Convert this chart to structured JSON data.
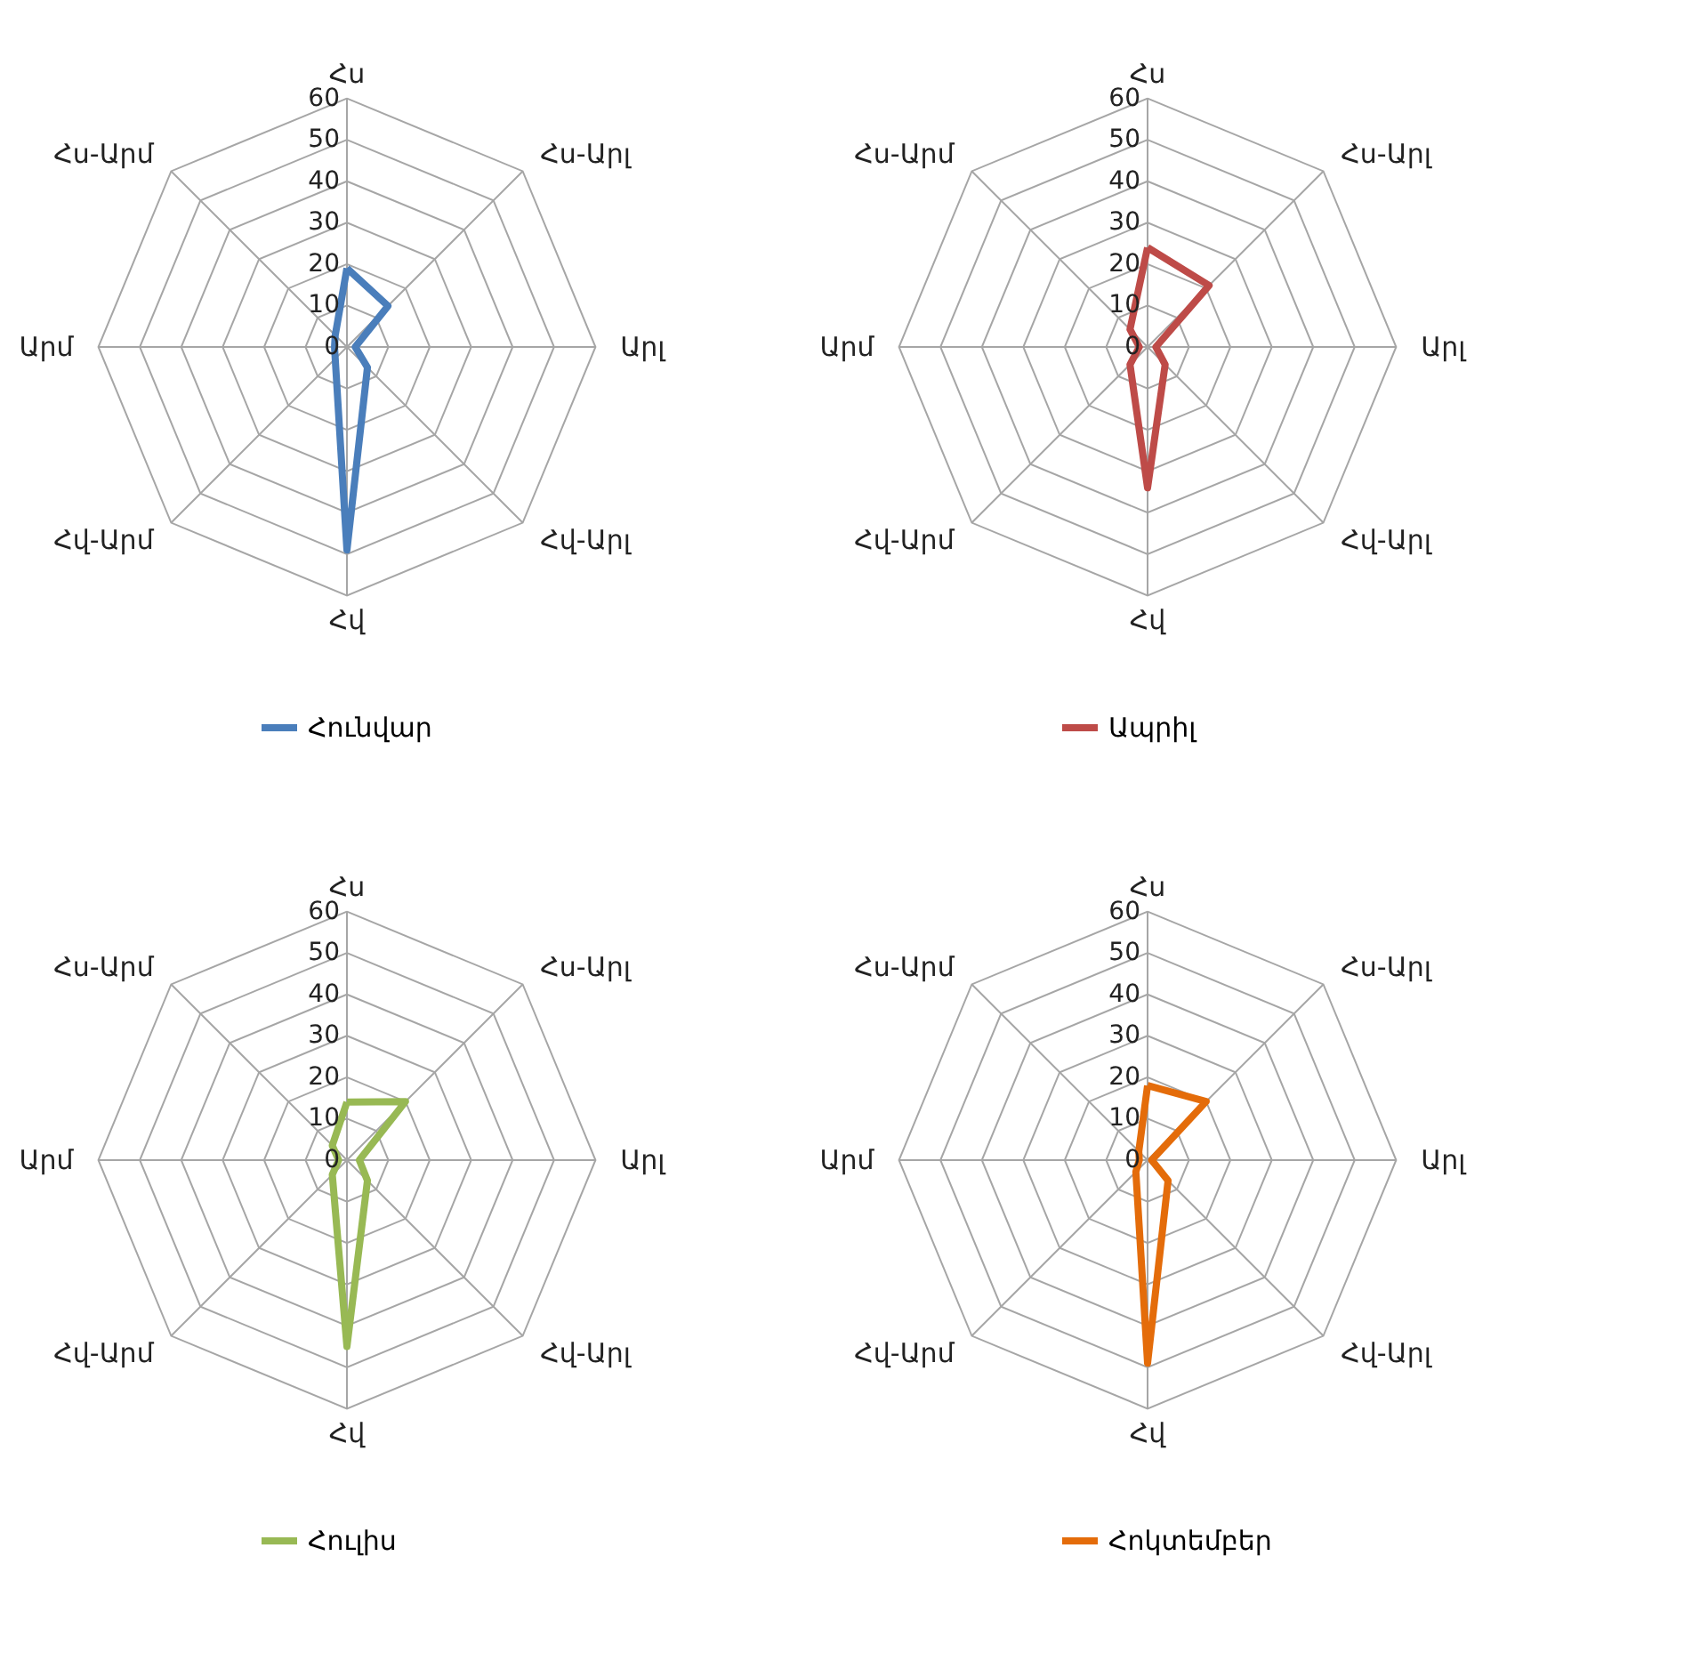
{
  "chart_data": [
    {
      "type": "radar",
      "categories": [
        "Հս",
        "Հս-Արլ",
        "Արլ",
        "Հվ-Արլ",
        "Հվ",
        "Հվ-Արմ",
        "Արմ",
        "Հս-Արմ"
      ],
      "ylim": [
        0,
        60
      ],
      "yticks": [
        0,
        10,
        20,
        30,
        40,
        50,
        60
      ],
      "grid": true,
      "legend": "bottom",
      "series": [
        {
          "name": "Հունվար",
          "color": "#4a7ebb",
          "values": [
            19,
            14,
            2,
            7,
            49,
            4,
            3,
            4
          ]
        }
      ]
    },
    {
      "type": "radar",
      "categories": [
        "Հս",
        "Հս-Արլ",
        "Արլ",
        "Հվ-Արլ",
        "Հվ",
        "Հվ-Արմ",
        "Արմ",
        "Հս-Արմ"
      ],
      "ylim": [
        0,
        60
      ],
      "yticks": [
        0,
        10,
        20,
        30,
        40,
        50,
        60
      ],
      "grid": true,
      "legend": "bottom",
      "series": [
        {
          "name": "Ապրիլ",
          "color": "#be4b48",
          "values": [
            24,
            21,
            2,
            6,
            34,
            6,
            2,
            6
          ]
        }
      ]
    },
    {
      "type": "radar",
      "categories": [
        "Հս",
        "Հս-Արլ",
        "Արլ",
        "Հվ-Արլ",
        "Հվ",
        "Հվ-Արմ",
        "Արմ",
        "Հս-Արմ"
      ],
      "ylim": [
        0,
        60
      ],
      "yticks": [
        0,
        10,
        20,
        30,
        40,
        50,
        60
      ],
      "grid": true,
      "legend": "bottom",
      "series": [
        {
          "name": "Հուլիս",
          "color": "#98b954",
          "values": [
            14,
            20,
            3,
            7,
            45,
            5,
            2,
            5
          ]
        }
      ]
    },
    {
      "type": "radar",
      "categories": [
        "Հս",
        "Հս-Արլ",
        "Արլ",
        "Հվ-Արլ",
        "Հվ",
        "Հվ-Արմ",
        "Արմ",
        "Հս-Արմ"
      ],
      "ylim": [
        0,
        60
      ],
      "yticks": [
        0,
        10,
        20,
        30,
        40,
        50,
        60
      ],
      "grid": true,
      "legend": "bottom",
      "series": [
        {
          "name": "Հոկտեմբեր",
          "color": "#e46c0a",
          "values": [
            18,
            20,
            1,
            7,
            49,
            4,
            2,
            3
          ]
        }
      ]
    }
  ]
}
